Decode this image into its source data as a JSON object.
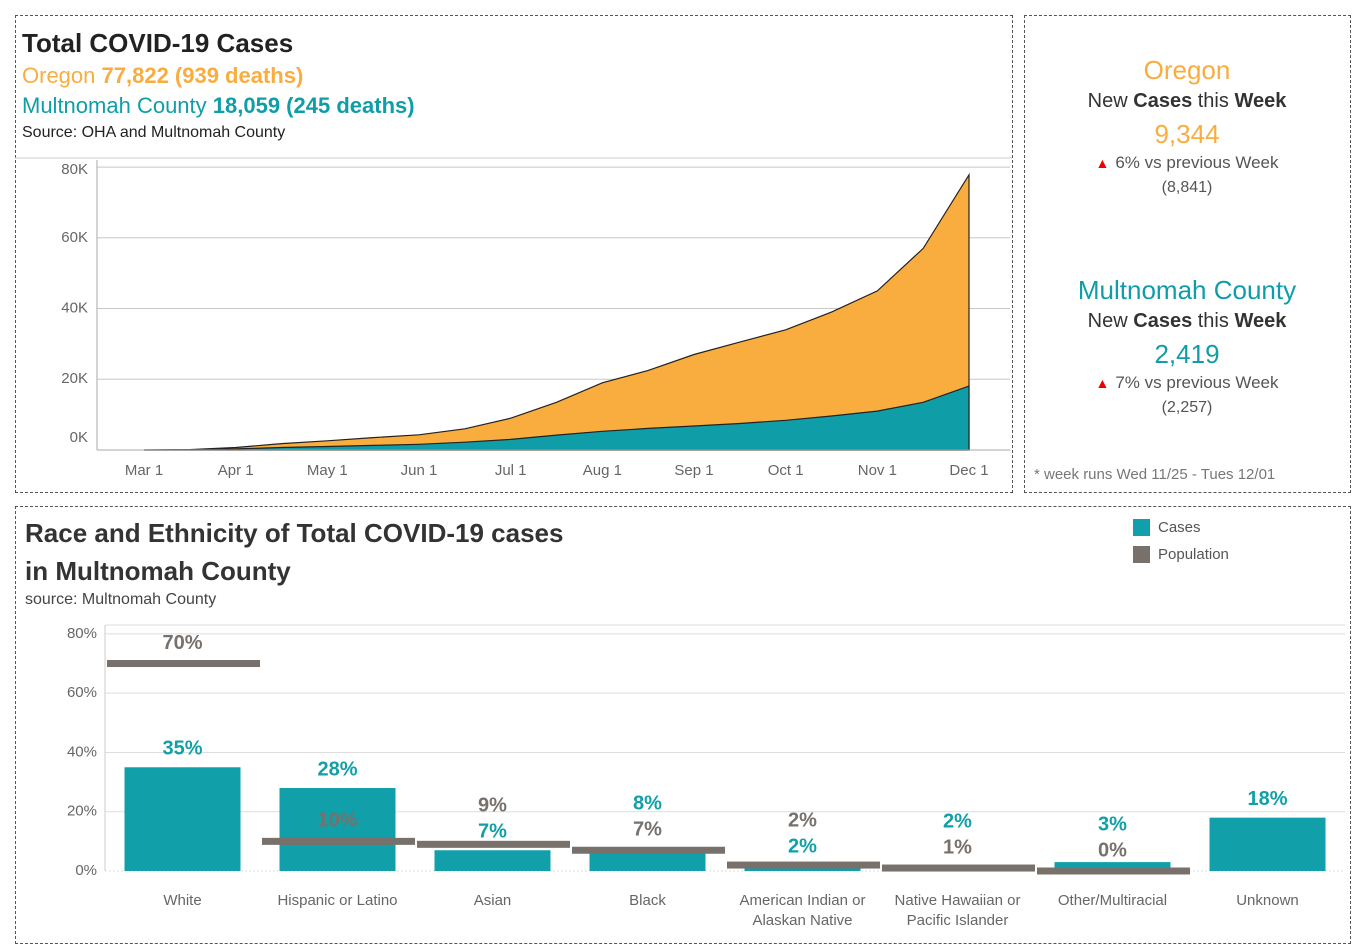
{
  "chart_data": [
    {
      "type": "area",
      "title": "Total COVID-19 Cases",
      "source": "Source: OHA and Multnomah County",
      "categories": [
        "Mar 1",
        null,
        "Apr 1",
        null,
        "May 1",
        null,
        "Jun 1",
        null,
        "Jul 1",
        null,
        "Aug 1",
        null,
        "Sep 1",
        null,
        "Oct 1",
        null,
        "Nov 1",
        null,
        "Dec 1"
      ],
      "series": [
        {
          "name": "Oregon",
          "summary": "77,822 (939 deaths)",
          "color": "#f9ad3f",
          "values": [
            0,
            100,
            700,
            1800,
            2600,
            3500,
            4300,
            6000,
            9000,
            13500,
            19000,
            22500,
            27000,
            30500,
            34000,
            39000,
            45000,
            57000,
            77822
          ]
        },
        {
          "name": "Multnomah County",
          "summary": "18,059 (245 deaths)",
          "color": "#0f9ea8",
          "values": [
            0,
            30,
            300,
            700,
            1000,
            1300,
            1600,
            2200,
            3000,
            4200,
            5300,
            6100,
            6800,
            7500,
            8400,
            9600,
            11000,
            13500,
            18059
          ]
        }
      ],
      "ylim": [
        0,
        82000
      ],
      "yticks": [
        {
          "value": 0,
          "label": "0K"
        },
        {
          "value": 20000,
          "label": "20K"
        },
        {
          "value": 40000,
          "label": "40K"
        },
        {
          "value": 60000,
          "label": "60K"
        },
        {
          "value": 80000,
          "label": "80K"
        }
      ],
      "grid": true
    },
    {
      "type": "bar",
      "title": "Race and Ethnicity of Total COVID-19 cases in Multnomah County",
      "source": "source: Multnomah County",
      "categories": [
        "White",
        "Hispanic or Latino",
        "Asian",
        "Black",
        "American Indian or Alaskan Native",
        "Native Hawaiian or Pacific Islander",
        "Other/Multiracial",
        "Unknown"
      ],
      "series": [
        {
          "name": "Cases",
          "color": "#11a0aa",
          "values": [
            35,
            28,
            7,
            8,
            2,
            2,
            3,
            18
          ],
          "value_labels": [
            "35%",
            "28%",
            "7%",
            "8%",
            "2%",
            "2%",
            "3%",
            "18%"
          ]
        },
        {
          "name": "Population",
          "color": "#77706b",
          "values": [
            70,
            10,
            9,
            7,
            2,
            1,
            0,
            null
          ],
          "value_labels": [
            "70%",
            "10%",
            "9%",
            "7%",
            "2%",
            "1%",
            "0%",
            null
          ]
        }
      ],
      "ylim": [
        0,
        83
      ],
      "yticks": [
        {
          "value": 0,
          "label": "0%"
        },
        {
          "value": 20,
          "label": "20%"
        },
        {
          "value": 40,
          "label": "40%"
        },
        {
          "value": 60,
          "label": "60%"
        },
        {
          "value": 80,
          "label": "80%"
        }
      ],
      "grid": true,
      "legend": "top-right"
    }
  ],
  "kpi": {
    "panels": [
      {
        "region": "Oregon",
        "color": "#f9ad3f",
        "label": "New Cases this Week",
        "value": "9,344",
        "change": "6% vs previous Week",
        "previous": "(8,841)"
      },
      {
        "region": "Multnomah County",
        "color": "#0f9ea8",
        "label": "New Cases this Week",
        "value": "2,419",
        "change": "7% vs previous Week",
        "previous": "(2,257)"
      }
    ],
    "footnote": "* week runs Wed 11/25 - Tues 12/01"
  }
}
